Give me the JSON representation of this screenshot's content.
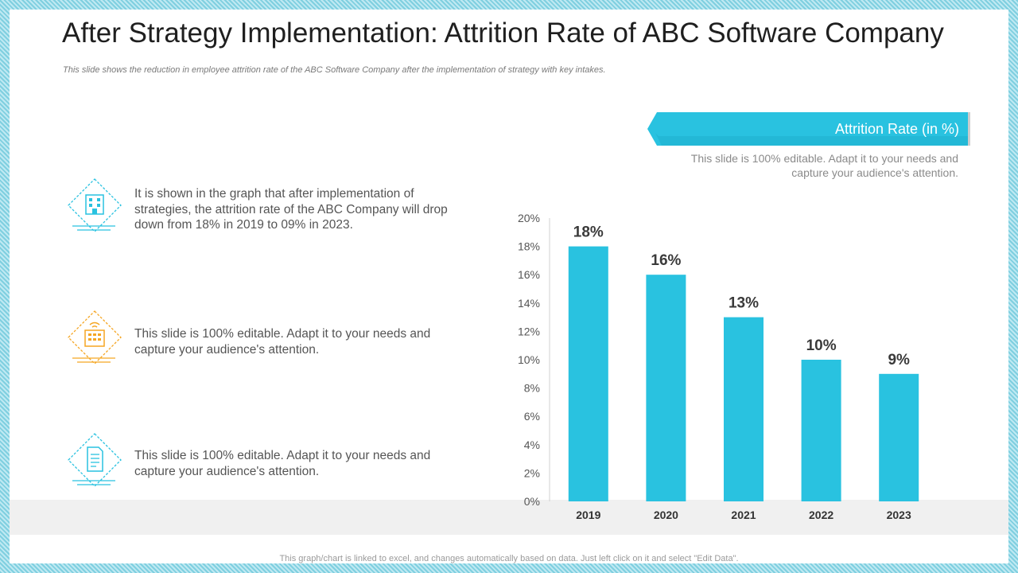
{
  "slide": {
    "title": "After Strategy Implementation: Attrition Rate of ABC Software Company",
    "subtitle": "This slide shows the reduction in employee attrition rate of the ABC Software Company after the implementation of strategy with key intakes.",
    "banner_label": "Attrition Rate (in %)",
    "banner_note": "This slide is 100% editable. Adapt it to your needs and capture your audience's attention.",
    "items": [
      {
        "icon": "office-building-icon",
        "color": "#29c2e0",
        "text": "It is shown in the graph that after implementation of strategies, the attrition rate of the ABC Company will drop down from 18% in 2019 to 09% in 2023."
      },
      {
        "icon": "building-wifi-icon",
        "color": "#f5a623",
        "text": "This slide is 100% editable. Adapt it to your needs and capture your audience's attention."
      },
      {
        "icon": "document-icon",
        "color": "#29c2e0",
        "text": "This slide is 100% editable. Adapt it to your needs and capture your audience's attention."
      }
    ],
    "footer": "This graph/chart is linked to excel, and changes automatically based on data. Just left click on it and select \"Edit Data\"."
  },
  "colors": {
    "accent": "#29c2e0",
    "bar": "#29c2e0",
    "band": "#f0f0f0"
  },
  "chart_data": {
    "type": "bar",
    "categories": [
      "2019",
      "2020",
      "2021",
      "2022",
      "2023"
    ],
    "values": [
      18,
      16,
      13,
      10,
      9
    ],
    "data_labels": [
      "18%",
      "16%",
      "13%",
      "10%",
      "9%"
    ],
    "y_ticks": [
      "0%",
      "2%",
      "4%",
      "6%",
      "8%",
      "10%",
      "12%",
      "14%",
      "16%",
      "18%",
      "20%"
    ],
    "ylim": [
      0,
      20
    ],
    "grid": false,
    "legend": "none"
  }
}
